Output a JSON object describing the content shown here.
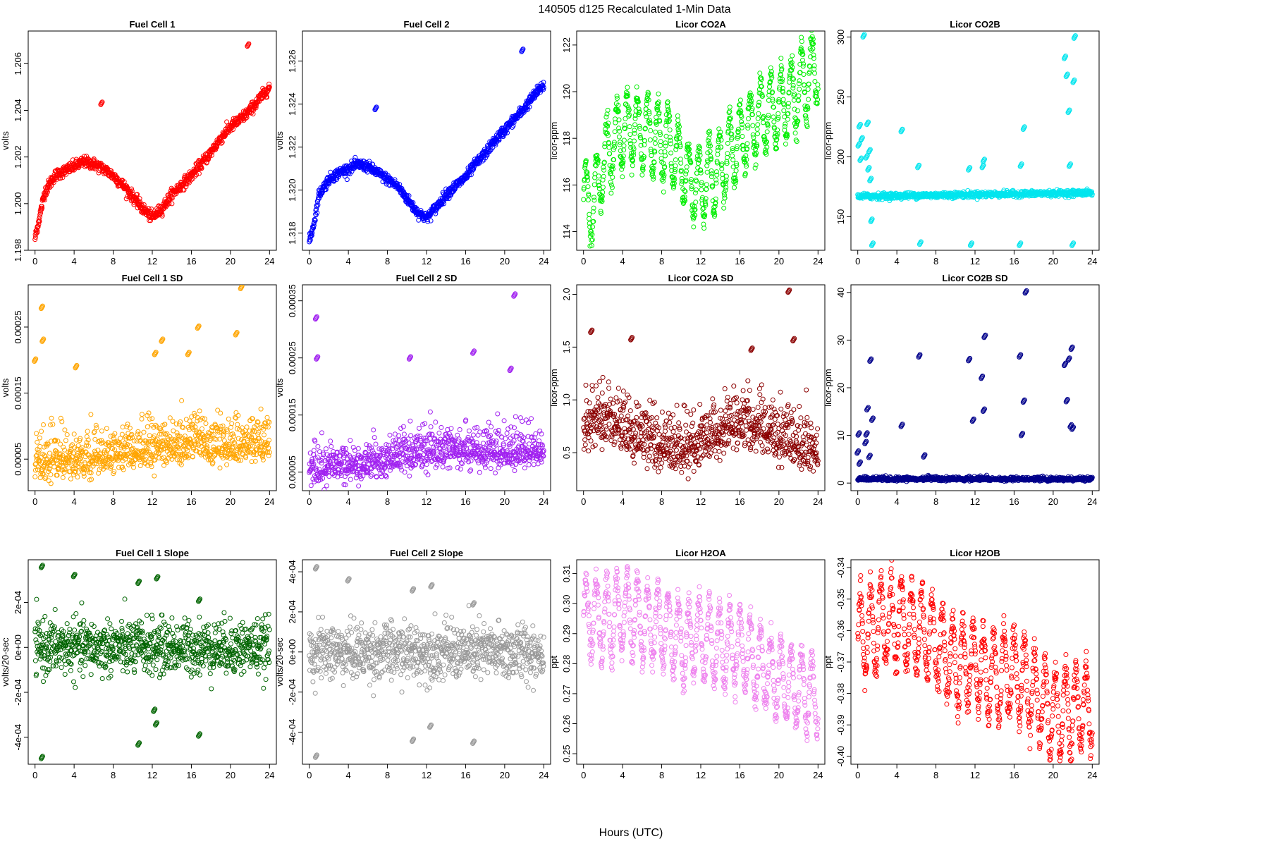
{
  "figure": {
    "title": "140505   d125   Recalculated 1-Min Data",
    "xlabel": "Hours (UTC)"
  },
  "chart_data": [
    {
      "type": "scatter",
      "title": "Fuel Cell 1",
      "xlabel": "",
      "ylabel": "volts",
      "xlim": [
        -0.7,
        24.7
      ],
      "ylim": [
        1.198,
        1.2074
      ],
      "xticks": [
        "0",
        "4",
        "8",
        "12",
        "16",
        "20",
        "24"
      ],
      "yticks": [
        "1.198",
        "1.200",
        "1.202",
        "1.204",
        "1.206"
      ],
      "color": "#ff0000",
      "grid": false,
      "series": [
        {
          "x": [
            0,
            0.5,
            1,
            2,
            3,
            4,
            5,
            6,
            7,
            8,
            9,
            10,
            11,
            12,
            13,
            14,
            15,
            16,
            17,
            18,
            19,
            20,
            21,
            22,
            23,
            24
          ],
          "y": [
            1.1985,
            1.1995,
            1.2005,
            1.2012,
            1.2014,
            1.2016,
            1.2018,
            1.2017,
            1.2015,
            1.2012,
            1.2008,
            1.2003,
            1.1998,
            1.1994,
            1.1998,
            1.2004,
            1.2008,
            1.2012,
            1.2017,
            1.2022,
            1.2028,
            1.2033,
            1.2036,
            1.204,
            1.2045,
            1.205
          ]
        }
      ],
      "outliers": [
        [
          6.8,
          1.2043
        ],
        [
          21.8,
          1.2068
        ]
      ]
    },
    {
      "type": "scatter",
      "title": "Fuel Cell 2",
      "xlabel": "",
      "ylabel": "volts",
      "xlim": [
        -0.7,
        24.7
      ],
      "ylim": [
        1.3172,
        1.3274
      ],
      "xticks": [
        "0",
        "4",
        "8",
        "12",
        "16",
        "20",
        "24"
      ],
      "yticks": [
        "1.318",
        "1.320",
        "1.322",
        "1.324",
        "1.326"
      ],
      "color": "#0000ff",
      "grid": false,
      "series": [
        {
          "x": [
            0,
            0.5,
            1,
            2,
            3,
            4,
            5,
            6,
            7,
            8,
            9,
            10,
            11,
            12,
            13,
            14,
            15,
            16,
            17,
            18,
            19,
            20,
            21,
            22,
            23,
            24
          ],
          "y": [
            1.3176,
            1.3185,
            1.3198,
            1.3205,
            1.3208,
            1.321,
            1.3212,
            1.3211,
            1.3208,
            1.3205,
            1.3202,
            1.3196,
            1.319,
            1.3187,
            1.3192,
            1.3198,
            1.3202,
            1.3206,
            1.3212,
            1.3217,
            1.3223,
            1.3228,
            1.3233,
            1.3238,
            1.3244,
            1.3249
          ]
        }
      ],
      "outliers": [
        [
          6.8,
          1.3238
        ],
        [
          21.8,
          1.3265
        ]
      ]
    },
    {
      "type": "scatter",
      "title": "Licor CO2A",
      "xlabel": "",
      "ylabel": "licor-ppm",
      "xlim": [
        -0.7,
        24.7
      ],
      "ylim": [
        113.2,
        122.6
      ],
      "xticks": [
        "0",
        "4",
        "8",
        "12",
        "16",
        "20",
        "24"
      ],
      "yticks": [
        "114",
        "116",
        "118",
        "120",
        "122"
      ],
      "color": "#00ee00",
      "grid": false,
      "series": [
        {
          "x": [
            0,
            1,
            2,
            3,
            4,
            5,
            6,
            7,
            8,
            9,
            10,
            11,
            12,
            13,
            14,
            15,
            16,
            17,
            18,
            19,
            20,
            21,
            22,
            23,
            24
          ],
          "y": [
            115.6,
            115.0,
            117.0,
            117.8,
            118.2,
            118.5,
            118.3,
            118.2,
            117.9,
            117.6,
            116.8,
            116.2,
            116.0,
            116.3,
            116.6,
            117.4,
            117.9,
            118.4,
            118.8,
            119.1,
            119.3,
            119.6,
            120.0,
            120.5,
            121.0
          ]
        }
      ],
      "amplitude": 1.8,
      "period": 1.05
    },
    {
      "type": "scatter",
      "title": "Licor CO2B",
      "xlabel": "",
      "ylabel": "licor-ppm",
      "xlim": [
        -0.7,
        24.7
      ],
      "ylim": [
        122,
        305
      ],
      "xticks": [
        "0",
        "4",
        "8",
        "12",
        "16",
        "20",
        "24"
      ],
      "yticks": [
        "150",
        "200",
        "250",
        "300"
      ],
      "color": "#00e5ee",
      "grid": false,
      "series": [
        {
          "x": [
            0,
            24
          ],
          "y": [
            167,
            170
          ]
        }
      ],
      "outliers": [
        [
          0.1,
          210
        ],
        [
          0.2,
          226
        ],
        [
          0.3,
          198
        ],
        [
          0.4,
          215
        ],
        [
          0.9,
          200
        ],
        [
          1.0,
          228
        ],
        [
          1.1,
          190
        ],
        [
          1.2,
          205
        ],
        [
          1.3,
          181
        ],
        [
          1.4,
          147
        ],
        [
          1.5,
          127
        ],
        [
          4.5,
          222
        ],
        [
          6.2,
          192
        ],
        [
          6.4,
          128
        ],
        [
          11.4,
          190
        ],
        [
          11.6,
          127
        ],
        [
          12.8,
          192
        ],
        [
          12.9,
          197
        ],
        [
          16.6,
          127
        ],
        [
          16.7,
          193
        ],
        [
          17.0,
          224
        ],
        [
          21.2,
          283
        ],
        [
          21.4,
          268
        ],
        [
          21.6,
          238
        ],
        [
          21.7,
          193
        ],
        [
          22.0,
          127
        ],
        [
          22.1,
          263
        ],
        [
          22.2,
          300
        ],
        [
          0.6,
          301
        ]
      ]
    },
    {
      "type": "scatter",
      "title": "Fuel Cell 1 SD",
      "xlabel": "",
      "ylabel": "volts",
      "xlim": [
        -0.7,
        24.7
      ],
      "ylim": [
        2.2e-06,
        0.000314
      ],
      "xticks": [
        "0",
        "4",
        "8",
        "12",
        "16",
        "20",
        "24"
      ],
      "yticks": [
        "0.00005",
        "0.00015",
        "0.00025"
      ],
      "color": "#ffa500",
      "grid": false,
      "series": [
        {
          "x": [
            0,
            4,
            8,
            12,
            16,
            20,
            24
          ],
          "y": [
            4.8e-05,
            4.8e-05,
            5.8e-05,
            6.8e-05,
            7.2e-05,
            7e-05,
            7.5e-05
          ]
        }
      ],
      "outliers": [
        [
          0.0,
          0.0002
        ],
        [
          0.7,
          0.00028
        ],
        [
          0.8,
          0.00023
        ],
        [
          4.2,
          0.00019
        ],
        [
          12.3,
          0.00021
        ],
        [
          13.0,
          0.00023
        ],
        [
          15.7,
          0.00021
        ],
        [
          16.7,
          0.00025
        ],
        [
          20.6,
          0.00024
        ],
        [
          21.1,
          0.00031
        ]
      ]
    },
    {
      "type": "scatter",
      "title": "Fuel Cell 2 SD",
      "xlabel": "",
      "ylabel": "volts",
      "xlim": [
        -0.7,
        24.7
      ],
      "ylim": [
        1.75e-05,
        0.000378
      ],
      "xticks": [
        "0",
        "4",
        "8",
        "12",
        "16",
        "20",
        "24"
      ],
      "yticks": [
        "0.00005",
        "0.00015",
        "0.00025",
        "0.00035"
      ],
      "color": "#a020f0",
      "grid": false,
      "series": [
        {
          "x": [
            0,
            4,
            8,
            12,
            16,
            20,
            24
          ],
          "y": [
            5.5e-05,
            5.8e-05,
            7.2e-05,
            8.5e-05,
            8.8e-05,
            8.5e-05,
            8.8e-05
          ]
        }
      ],
      "outliers": [
        [
          0.7,
          0.00032
        ],
        [
          0.8,
          0.00025
        ],
        [
          10.3,
          0.00025
        ],
        [
          16.8,
          0.00026
        ],
        [
          20.6,
          0.00023
        ],
        [
          21.0,
          0.00036
        ]
      ]
    },
    {
      "type": "scatter",
      "title": "Licor CO2A SD",
      "xlabel": "",
      "ylabel": "licor-ppm",
      "xlim": [
        -0.7,
        24.7
      ],
      "ylim": [
        0.14,
        2.09
      ],
      "xticks": [
        "0",
        "4",
        "8",
        "12",
        "16",
        "20",
        "24"
      ],
      "yticks": [
        "0.5",
        "1.0",
        "1.5",
        "2.0"
      ],
      "color": "#8b0000",
      "grid": false,
      "series": [
        {
          "x": [
            0,
            2,
            4,
            6,
            8,
            10,
            12,
            14,
            16,
            18,
            20,
            22,
            24
          ],
          "y": [
            0.75,
            0.78,
            0.72,
            0.62,
            0.58,
            0.52,
            0.58,
            0.66,
            0.78,
            0.72,
            0.62,
            0.58,
            0.5
          ]
        }
      ],
      "outliers": [
        [
          0.8,
          1.65
        ],
        [
          4.9,
          1.58
        ],
        [
          17.2,
          1.48
        ],
        [
          21.0,
          2.03
        ],
        [
          21.5,
          1.57
        ]
      ]
    },
    {
      "type": "scatter",
      "title": "Licor CO2B SD",
      "xlabel": "",
      "ylabel": "licor-ppm",
      "xlim": [
        -0.7,
        24.7
      ],
      "ylim": [
        -1.6,
        41.6
      ],
      "xticks": [
        "0",
        "4",
        "8",
        "12",
        "16",
        "20",
        "24"
      ],
      "yticks": [
        "0",
        "10",
        "20",
        "30",
        "40"
      ],
      "color": "#00008b",
      "grid": false,
      "series": [
        {
          "x": [
            0,
            24
          ],
          "y": [
            0.8,
            0.8
          ]
        }
      ],
      "outliers": [
        [
          0.0,
          6.5
        ],
        [
          0.1,
          10.3
        ],
        [
          0.2,
          4.2
        ],
        [
          0.8,
          8.5
        ],
        [
          0.9,
          10.3
        ],
        [
          1.0,
          15.6
        ],
        [
          1.2,
          5.6
        ],
        [
          1.5,
          13.4
        ],
        [
          1.3,
          25.8
        ],
        [
          4.5,
          12.1
        ],
        [
          6.3,
          26.7
        ],
        [
          6.8,
          5.7
        ],
        [
          11.4,
          25.9
        ],
        [
          11.8,
          13.2
        ],
        [
          12.7,
          22.2
        ],
        [
          12.9,
          15.3
        ],
        [
          13.0,
          30.8
        ],
        [
          16.6,
          26.7
        ],
        [
          16.8,
          10.2
        ],
        [
          17.0,
          17.2
        ],
        [
          17.2,
          40.1
        ],
        [
          21.2,
          24.9
        ],
        [
          21.4,
          17.3
        ],
        [
          21.6,
          26.0
        ],
        [
          21.8,
          12.0
        ],
        [
          21.9,
          28.3
        ],
        [
          22.0,
          11.5
        ]
      ]
    },
    {
      "type": "scatter",
      "title": "Fuel Cell 1 Slope",
      "xlabel": "",
      "ylabel": "volts/20-sec",
      "xlim": [
        -0.7,
        24.7
      ],
      "ylim": [
        -0.00052,
        0.00039
      ],
      "xticks": [
        "0",
        "4",
        "8",
        "12",
        "16",
        "20",
        "24"
      ],
      "yticks": [
        "-4e-04",
        "-2e-04",
        "0e+00",
        "2e-04"
      ],
      "color": "#006400",
      "grid": false,
      "series": [
        {
          "x": [
            0,
            24
          ],
          "y": [
            0.0,
            0.0
          ]
        }
      ],
      "outliers": [
        [
          0.7,
          0.00036
        ],
        [
          0.7,
          -0.00049
        ],
        [
          4.0,
          0.00032
        ],
        [
          10.6,
          0.00029
        ],
        [
          10.6,
          -0.00043
        ],
        [
          12.5,
          0.00031
        ],
        [
          12.4,
          -0.00034
        ],
        [
          12.2,
          -0.00028
        ],
        [
          16.8,
          -0.00039
        ],
        [
          16.8,
          0.00021
        ]
      ]
    },
    {
      "type": "scatter",
      "title": "Fuel Cell 2 Slope",
      "xlabel": "",
      "ylabel": "volts/20-sec",
      "xlim": [
        -0.7,
        24.7
      ],
      "ylim": [
        -0.00056,
        0.00046
      ],
      "xticks": [
        "0",
        "4",
        "8",
        "12",
        "16",
        "20",
        "24"
      ],
      "yticks": [
        "-4e-04",
        "-2e-04",
        "0e+00",
        "2e-04",
        "4e-04"
      ],
      "color": "#999999",
      "grid": false,
      "series": [
        {
          "x": [
            0,
            24
          ],
          "y": [
            0.0,
            0.0
          ]
        }
      ],
      "outliers": [
        [
          0.7,
          0.00042
        ],
        [
          0.7,
          -0.00052
        ],
        [
          4.0,
          0.00036
        ],
        [
          10.6,
          0.00031
        ],
        [
          10.6,
          -0.00044
        ],
        [
          12.5,
          0.00033
        ],
        [
          12.4,
          -0.00037
        ],
        [
          16.8,
          -0.00045
        ],
        [
          16.8,
          0.00024
        ]
      ]
    },
    {
      "type": "scatter",
      "title": "Licor H2OA",
      "xlabel": "",
      "ylabel": "ppt",
      "xlim": [
        -0.7,
        24.7
      ],
      "ylim": [
        0.2465,
        0.3146
      ],
      "xticks": [
        "0",
        "4",
        "8",
        "12",
        "16",
        "20",
        "24"
      ],
      "yticks": [
        "0.25",
        "0.26",
        "0.27",
        "0.28",
        "0.29",
        "0.30",
        "0.31"
      ],
      "color": "#ee82ee",
      "grid": false,
      "series": [
        {
          "x": [
            0,
            2,
            4,
            6,
            8,
            10,
            12,
            14,
            16,
            18,
            20,
            22,
            24
          ],
          "y": [
            0.296,
            0.294,
            0.297,
            0.294,
            0.292,
            0.287,
            0.289,
            0.285,
            0.285,
            0.279,
            0.275,
            0.272,
            0.27
          ]
        }
      ],
      "amplitude": 0.015,
      "period": 1.05
    },
    {
      "type": "scatter",
      "title": "Licor H2OB",
      "xlabel": "",
      "ylabel": "ppt",
      "xlim": [
        -0.7,
        24.7
      ],
      "ylim": [
        -0.4025,
        -0.3375
      ],
      "xticks": [
        "0",
        "4",
        "8",
        "12",
        "16",
        "20",
        "24"
      ],
      "yticks": [
        "-0.40",
        "-0.39",
        "-0.38",
        "-0.37",
        "-0.36",
        "-0.35",
        "-0.34"
      ],
      "color": "#ff0000",
      "grid": false,
      "series": [
        {
          "x": [
            0,
            2,
            4,
            6,
            8,
            10,
            12,
            14,
            16,
            18,
            20,
            22,
            24
          ],
          "y": [
            -0.363,
            -0.358,
            -0.357,
            -0.359,
            -0.364,
            -0.37,
            -0.371,
            -0.375,
            -0.373,
            -0.38,
            -0.386,
            -0.385,
            -0.384
          ]
        }
      ],
      "amplitude": 0.016,
      "period": 1.05
    }
  ]
}
